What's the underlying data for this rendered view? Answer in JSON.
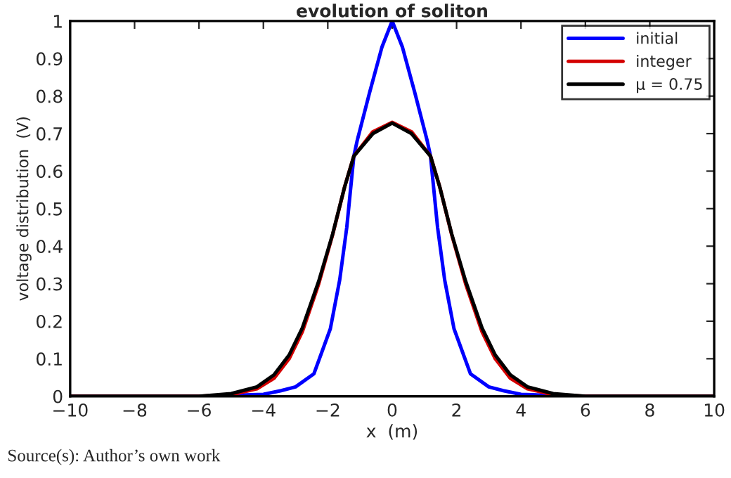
{
  "chart_data": {
    "type": "line",
    "title": "evolution of soliton",
    "xlabel": "x  (m)",
    "ylabel": "voltage distribution  (V)",
    "annotations": [
      "Source(s): Author’s own work"
    ],
    "series": [
      {
        "name": "initial",
        "color": "#0000ff",
        "x": [
          -10,
          -6,
          -5,
          -4,
          -3.45,
          -3,
          -2.43,
          -1.92,
          -1.63,
          -1.41,
          -1.19,
          -1.09,
          -0.7,
          -0.32,
          0,
          0.32,
          0.7,
          1.09,
          1.19,
          1.41,
          1.63,
          1.92,
          2.43,
          3,
          3.45,
          4,
          5,
          6,
          10
        ],
        "values": [
          0,
          0,
          null,
          0.005,
          0.015,
          0.025,
          0.06,
          0.18,
          0.31,
          0.45,
          0.64,
          0.68,
          0.81,
          0.93,
          1,
          0.93,
          0.81,
          0.68,
          0.64,
          0.45,
          0.31,
          0.18,
          0.06,
          0.025,
          0.015,
          0.005,
          null,
          0,
          0
        ]
      },
      {
        "name": "integer",
        "color": "#d40000",
        "x": [
          -10,
          -6,
          -5,
          -4.2,
          -3.67,
          -3.2,
          -2.79,
          -2.28,
          -1.85,
          -1.48,
          -1.19,
          -0.6,
          0,
          0.6,
          1.19,
          1.48,
          1.85,
          2.28,
          2.79,
          3.2,
          3.67,
          4.2,
          5,
          6,
          10
        ],
        "values": [
          0,
          0,
          0.004,
          0.02,
          0.048,
          0.1,
          0.172,
          0.3,
          0.43,
          0.557,
          0.64,
          0.705,
          0.73,
          0.705,
          0.64,
          0.557,
          0.43,
          0.3,
          0.172,
          0.1,
          0.048,
          0.02,
          0.004,
          0,
          0
        ]
      },
      {
        "name": "μ = 0.75",
        "color": "#000000",
        "x": [
          -10,
          -6,
          -5,
          -4.2,
          -3.67,
          -3.2,
          -2.79,
          -2.28,
          -1.85,
          -1.48,
          -1.19,
          -0.6,
          0,
          0.6,
          1.19,
          1.48,
          1.85,
          2.28,
          2.79,
          3.2,
          3.67,
          4.2,
          5,
          6,
          10
        ],
        "values": [
          0,
          0,
          0.007,
          0.025,
          0.057,
          0.11,
          0.182,
          0.307,
          0.432,
          0.557,
          0.64,
          0.7,
          0.728,
          0.7,
          0.64,
          0.557,
          0.432,
          0.307,
          0.182,
          0.11,
          0.057,
          0.025,
          0.007,
          0,
          0
        ]
      }
    ],
    "xlim": [
      -10,
      10
    ],
    "xticks": [
      {
        "value": -10,
        "label": "−10"
      },
      {
        "value": -8,
        "label": "−8"
      },
      {
        "value": -6,
        "label": "−6"
      },
      {
        "value": -4,
        "label": "−4"
      },
      {
        "value": -2,
        "label": "−2"
      },
      0,
      2,
      4,
      6,
      8,
      10
    ],
    "ylim": [
      0,
      1
    ],
    "yticks": [
      0,
      0.1,
      0.2,
      0.3,
      0.4,
      0.5,
      0.6,
      0.7,
      0.8,
      0.9,
      1
    ],
    "grid": false,
    "legend": "top right",
    "marker": "none",
    "line_style": "solid"
  }
}
